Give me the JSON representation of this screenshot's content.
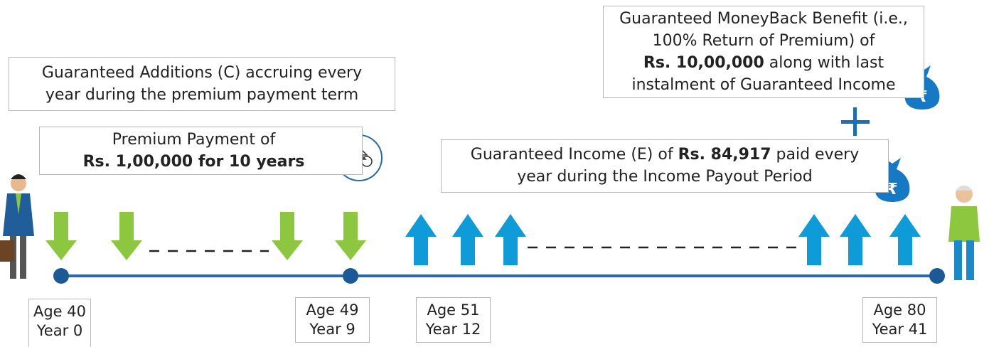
{
  "boxes": {
    "additions": {
      "lines": [
        "Guaranteed Additions (C) accruing every",
        "year during the premium payment term"
      ]
    },
    "premium": {
      "line1": "Premium Payment of",
      "line2_bold": "Rs. 1,00,000 for 10 years"
    },
    "moneyback": {
      "line1": "Guaranteed MoneyBack Benefit (i.e.,",
      "line2": "100% Return of Premium) of",
      "line3_bold": "Rs. 10,00,000",
      "line3_rest": " along with last",
      "line4": "instalment of Guaranteed Income"
    },
    "income": {
      "line1_start": "Guaranteed Income (E) of ",
      "line1_bold": "Rs. 84,917",
      "line1_end": " paid every",
      "line2": "year during the Income Payout Period"
    }
  },
  "milestones": [
    {
      "age": "Age 40",
      "year": "Year 0"
    },
    {
      "age": "Age 49",
      "year": "Year 9"
    },
    {
      "age": "Age 51",
      "year": "Year 12"
    },
    {
      "age": "Age 80",
      "year": "Year 41"
    }
  ]
}
